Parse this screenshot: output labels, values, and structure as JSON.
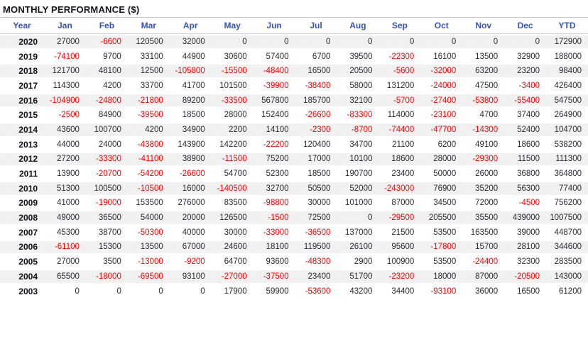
{
  "title": "MONTHLY PERFORMANCE ($)",
  "colors": {
    "header_text": "#3355bb",
    "negative_value": "#fe0000",
    "positive_value": "#2b2b33",
    "title_text": "#14141c",
    "stripe_row": "#efefef",
    "divider_line": "#c9c9c9"
  },
  "chart_data": {
    "type": "table",
    "title": "MONTHLY PERFORMANCE ($)",
    "columns": [
      "Year",
      "Jan",
      "Feb",
      "Mar",
      "Apr",
      "May",
      "Jun",
      "Jul",
      "Aug",
      "Sep",
      "Oct",
      "Nov",
      "Dec",
      "YTD"
    ],
    "rows": [
      {
        "year": "2020",
        "values": [
          27000,
          -6600,
          120500,
          32000,
          0,
          0,
          0,
          0,
          0,
          0,
          0,
          0,
          172900
        ]
      },
      {
        "year": "2019",
        "values": [
          -74100,
          9700,
          33100,
          44900,
          30600,
          57400,
          6700,
          39500,
          -22300,
          16100,
          13500,
          32900,
          188000
        ]
      },
      {
        "year": "2018",
        "values": [
          121700,
          48100,
          12500,
          -105800,
          -15500,
          -48400,
          16500,
          20500,
          -5600,
          -32000,
          63200,
          23200,
          98400
        ]
      },
      {
        "year": "2017",
        "values": [
          114300,
          4200,
          33700,
          41700,
          101500,
          -39900,
          -38400,
          58000,
          131200,
          -24000,
          47500,
          -3400,
          426400
        ]
      },
      {
        "year": "2016",
        "values": [
          -104900,
          -24800,
          -21800,
          89200,
          -33500,
          567800,
          185700,
          32100,
          -5700,
          -27400,
          -53800,
          -55400,
          547500
        ]
      },
      {
        "year": "2015",
        "values": [
          -2500,
          84900,
          -39500,
          18500,
          28000,
          152400,
          -26600,
          -83300,
          114000,
          -23100,
          4700,
          37400,
          264900
        ]
      },
      {
        "year": "2014",
        "values": [
          43600,
          100700,
          4200,
          34900,
          2200,
          14100,
          -2300,
          -8700,
          -74400,
          -47700,
          -14300,
          52400,
          104700
        ]
      },
      {
        "year": "2013",
        "values": [
          44000,
          24000,
          -43800,
          143900,
          142200,
          -22200,
          120400,
          34700,
          21100,
          6200,
          49100,
          18600,
          538200
        ]
      },
      {
        "year": "2012",
        "values": [
          27200,
          -33300,
          -41100,
          38900,
          -11500,
          75200,
          17000,
          10100,
          18600,
          28000,
          -29300,
          11500,
          111300
        ]
      },
      {
        "year": "2011",
        "values": [
          13900,
          -20700,
          -54200,
          -26600,
          54700,
          52300,
          18500,
          190700,
          23400,
          50000,
          26000,
          36800,
          364800
        ]
      },
      {
        "year": "2010",
        "values": [
          51300,
          100500,
          -10500,
          16000,
          -140500,
          32700,
          50500,
          52000,
          -243000,
          76900,
          35200,
          56300,
          77400
        ]
      },
      {
        "year": "2009",
        "values": [
          41000,
          -19000,
          153500,
          276000,
          83500,
          -98800,
          30000,
          101000,
          87000,
          34500,
          72000,
          -4500,
          756200
        ]
      },
      {
        "year": "2008",
        "values": [
          49000,
          36500,
          54000,
          20000,
          126500,
          -1500,
          72500,
          0,
          -29500,
          205500,
          35500,
          439000,
          1007500
        ]
      },
      {
        "year": "2007",
        "values": [
          45300,
          38700,
          -50300,
          40000,
          30000,
          -33000,
          -36500,
          137000,
          21500,
          53500,
          163500,
          39000,
          448700
        ]
      },
      {
        "year": "2006",
        "values": [
          -61100,
          15300,
          13500,
          67000,
          24600,
          18100,
          119500,
          26100,
          95600,
          -17800,
          15700,
          28100,
          344600
        ]
      },
      {
        "year": "2005",
        "values": [
          27000,
          3500,
          -13000,
          -9200,
          64700,
          93600,
          -48300,
          2900,
          100900,
          53500,
          -24400,
          32300,
          283500
        ]
      },
      {
        "year": "2004",
        "values": [
          65500,
          -18000,
          -69500,
          93100,
          -27000,
          -37500,
          23400,
          51700,
          -23200,
          18000,
          87000,
          -20500,
          143000
        ]
      },
      {
        "year": "2003",
        "values": [
          0,
          0,
          0,
          0,
          17900,
          59900,
          -53600,
          43200,
          34400,
          -93100,
          36000,
          16500,
          61200
        ]
      }
    ]
  }
}
